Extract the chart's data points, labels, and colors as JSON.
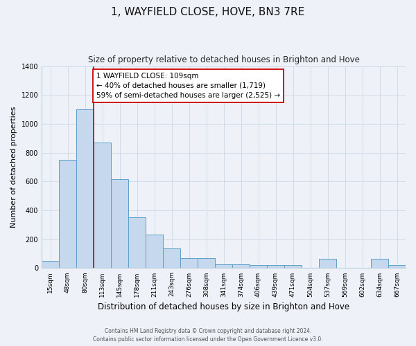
{
  "title": "1, WAYFIELD CLOSE, HOVE, BN3 7RE",
  "subtitle": "Size of property relative to detached houses in Brighton and Hove",
  "xlabel": "Distribution of detached houses by size in Brighton and Hove",
  "ylabel": "Number of detached properties",
  "bar_labels": [
    "15sqm",
    "48sqm",
    "80sqm",
    "113sqm",
    "145sqm",
    "178sqm",
    "211sqm",
    "243sqm",
    "276sqm",
    "308sqm",
    "341sqm",
    "374sqm",
    "406sqm",
    "439sqm",
    "471sqm",
    "504sqm",
    "537sqm",
    "569sqm",
    "602sqm",
    "634sqm",
    "667sqm"
  ],
  "bar_values": [
    50,
    750,
    1100,
    870,
    615,
    350,
    230,
    135,
    70,
    70,
    25,
    25,
    20,
    20,
    20,
    0,
    65,
    0,
    0,
    65,
    20
  ],
  "bar_color": "#c5d8ed",
  "bar_edge_color": "#5a9fc5",
  "background_color": "#eef2f8",
  "grid_color": "#d0dcea",
  "red_line_x": 3,
  "red_line_color": "#cc0000",
  "annotation_text": "1 WAYFIELD CLOSE: 109sqm\n← 40% of detached houses are smaller (1,719)\n59% of semi-detached houses are larger (2,525) →",
  "annotation_box_color": "#ffffff",
  "annotation_box_edge": "#cc0000",
  "footer_line1": "Contains HM Land Registry data © Crown copyright and database right 2024.",
  "footer_line2": "Contains public sector information licensed under the Open Government Licence v3.0.",
  "ylim": [
    0,
    1400
  ],
  "title_fontsize": 11,
  "subtitle_fontsize": 8.5,
  "ylabel_fontsize": 8,
  "xlabel_fontsize": 8.5,
  "tick_fontsize": 6.5,
  "annot_fontsize": 7.5,
  "footer_fontsize": 5.5
}
